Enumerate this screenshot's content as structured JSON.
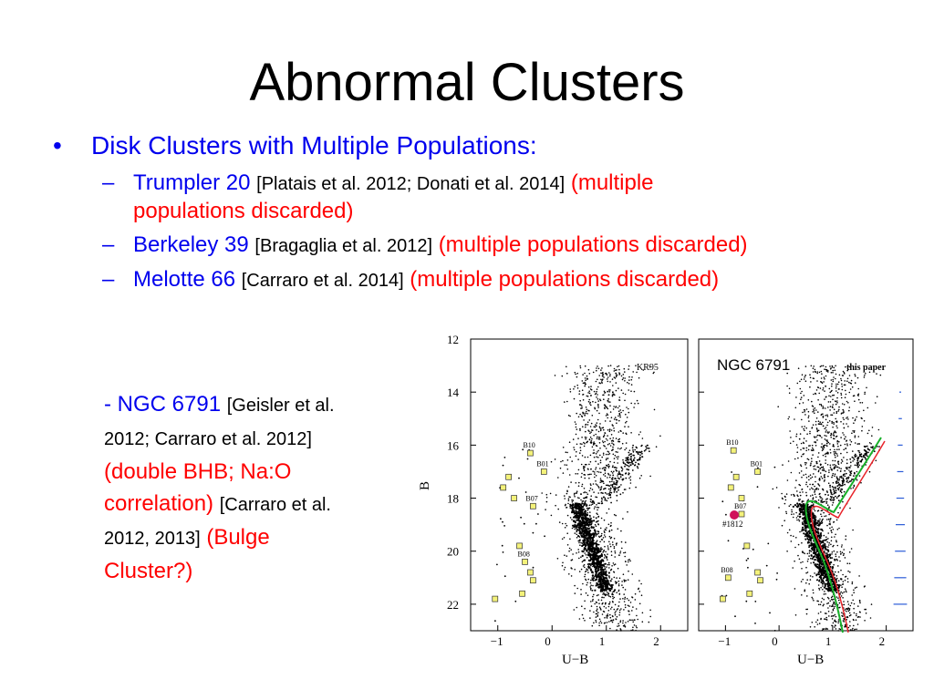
{
  "title": "Abnormal Clusters",
  "bullet": {
    "symbol": "•",
    "text": "Disk Clusters with Multiple Populations:"
  },
  "subitems": [
    {
      "dash": "–",
      "name": "Trumpler 20",
      "ref": "[Platais et al. 2012; Donati et al. 2014]",
      "note_line1": "(multiple",
      "note_line2": "populations discarded)"
    },
    {
      "dash": "–",
      "name": "Berkeley 39",
      "ref": "[Bragaglia et al. 2012]",
      "note": "(multiple populations discarded)"
    },
    {
      "dash": "–",
      "name": "Melotte 66",
      "ref": "[Carraro et al. 2014]",
      "note": "(multiple populations discarded)"
    }
  ],
  "ngc_note": {
    "name": "- NGC 6791",
    "ref1_a": "[Geisler et al.",
    "ref1_b": "2012; Carraro et al. 2012]",
    "red1_a": "(double BHB; Na:O",
    "red1_b": "correlation)",
    "ref2_a": "[Carraro et al.",
    "ref2_b": "2012, 2013]",
    "red2_a": "(Bulge",
    "red2_b": "Cluster?)"
  },
  "colors": {
    "blue": "#0000ee",
    "red": "#ff0000",
    "marker_yellow": "#f4f27a",
    "marker_blue": "#2a5bd7",
    "isochrone_green": "#18b02a",
    "isochrone_red": "#e8232a",
    "highlight_magenta": "#d0105a"
  },
  "figure": {
    "ylabel": "B",
    "xlabel": "U−B",
    "panel_left_label": "KR95",
    "panel_right_label": "this paper",
    "overlay_label": "NGC 6791",
    "highlight_label": "#1812",
    "y_ticks": [
      "12",
      "14",
      "16",
      "18",
      "20",
      "22"
    ],
    "x_ticks": [
      "−1",
      "0",
      "1",
      "2"
    ],
    "star_labels": [
      "B10",
      "B01",
      "B07",
      "B08"
    ]
  },
  "chart_data": {
    "type": "scatter",
    "xlabel": "U−B",
    "ylabel": "B",
    "xlim": [
      -1.5,
      2.5
    ],
    "ylim": [
      23,
      12
    ],
    "panels": [
      {
        "label": "KR95",
        "marked_stars": [
          {
            "label": "B10",
            "x": -0.4,
            "y": 16.3
          },
          {
            "label": "B01",
            "x": -0.15,
            "y": 17.0
          },
          {
            "label": "B07",
            "x": -0.35,
            "y": 18.3
          },
          {
            "label": "B08",
            "x": -0.5,
            "y": 20.4
          }
        ]
      },
      {
        "label": "this paper",
        "marked_stars": [
          {
            "label": "B10",
            "x": -0.85,
            "y": 16.2
          },
          {
            "label": "B01",
            "x": -0.4,
            "y": 17.0
          },
          {
            "label": "B07",
            "x": -0.7,
            "y": 18.6
          },
          {
            "label": "B08",
            "x": -0.95,
            "y": 21.0
          },
          {
            "label": "#1812",
            "x": -0.85,
            "y": 18.6
          }
        ]
      }
    ]
  }
}
